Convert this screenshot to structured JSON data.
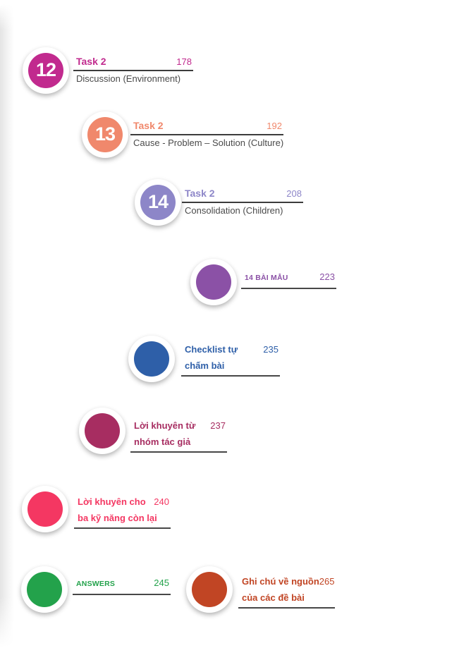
{
  "theme": {
    "background": "#ffffff",
    "subtitle_color": "#4a4a4a",
    "rule_dark": "#3c3c3c",
    "edge_shadow": "#e3e3e3"
  },
  "entries": [
    {
      "kind": "task",
      "number": "12",
      "color": "#c12a8e",
      "title": "Task 2",
      "page": "178",
      "subtitle": "Discussion (Environment)"
    },
    {
      "kind": "task",
      "number": "13",
      "color": "#f0886c",
      "title": "Task 2",
      "page": "192",
      "subtitle": "Cause - Problem – Solution (Culture)"
    },
    {
      "kind": "task",
      "number": "14",
      "color": "#8d86c8",
      "title": "Task 2",
      "page": "208",
      "subtitle": "Consolidation (Children)"
    },
    {
      "kind": "section",
      "color": "#8b51a6",
      "line1": "14 BÀI MẪU",
      "line2": "",
      "page": "223"
    },
    {
      "kind": "section",
      "color": "#2e5fa8",
      "line1": "Checklist tự",
      "line2": "chấm bài",
      "page": "235"
    },
    {
      "kind": "section",
      "color": "#a72d61",
      "line1": "Lời khuyên từ",
      "line2": "nhóm tác giả",
      "page": "237"
    },
    {
      "kind": "section",
      "color": "#f43762",
      "line1": "Lời khuyên cho",
      "line2": "ba kỹ năng còn lại",
      "page": "240"
    },
    {
      "kind": "section",
      "color": "#23a24b",
      "line1": "ANSWERS",
      "line2": "",
      "page": "245"
    },
    {
      "kind": "section",
      "color": "#c14524",
      "line1": "Ghi chú về nguồn",
      "line2": "của các đề bài",
      "page": "265"
    }
  ]
}
